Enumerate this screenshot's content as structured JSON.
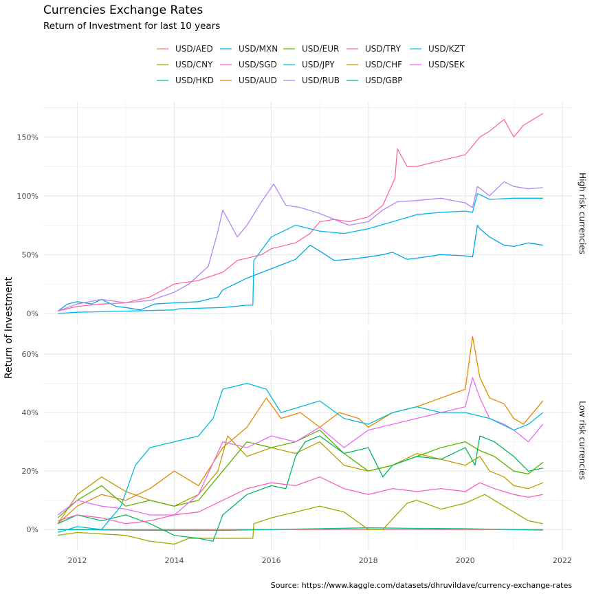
{
  "chart_data": {
    "type": "line",
    "title": "Currencies Exchange Rates",
    "subtitle": "Return of Investment for last 10 years",
    "ylabel": "Return of Investment",
    "caption": "Source: https://www.kaggle.com/datasets/dhruvildave/currency-exchange-rates",
    "xlim": [
      2011.3,
      2022.2
    ],
    "x_ticks": [
      2012,
      2014,
      2016,
      2018,
      2020,
      2022
    ],
    "x_tick_labels": [
      "2012",
      "2014",
      "2016",
      "2018",
      "2020",
      "2022"
    ],
    "grid": true,
    "legend_position": "top",
    "legend": [
      {
        "name": "USD/AED",
        "color": "#F8766D"
      },
      {
        "name": "USD/CNY",
        "color": "#A3A500"
      },
      {
        "name": "USD/HKD",
        "color": "#00BFA0"
      },
      {
        "name": "USD/MXN",
        "color": "#00A5E8"
      },
      {
        "name": "USD/SGD",
        "color": "#F560C0"
      },
      {
        "name": "USD/AUD",
        "color": "#E08A00"
      },
      {
        "name": "USD/EUR",
        "color": "#5BB300"
      },
      {
        "name": "USD/JPY",
        "color": "#00BCD8"
      },
      {
        "name": "USD/RUB",
        "color": "#B485F7"
      },
      {
        "name": "USD/TRY",
        "color": "#FF66A3"
      },
      {
        "name": "USD/CHF",
        "color": "#C09A00"
      },
      {
        "name": "USD/GBP",
        "color": "#00B85C"
      },
      {
        "name": "USD/KZT",
        "color": "#00B6EB"
      },
      {
        "name": "USD/SEK",
        "color": "#E86BF3"
      }
    ],
    "panels": [
      {
        "strip": "High risk currencies",
        "ylim": [
          -10,
          180
        ],
        "y_ticks": [
          0,
          50,
          100,
          150
        ],
        "y_tick_labels": [
          "0%",
          "50%",
          "100%",
          "150%"
        ],
        "series": [
          {
            "name": "USD/MXN",
            "color": "#00A5E8",
            "x": [
              2011.6,
              2011.8,
              2012.0,
              2012.3,
              2012.5,
              2012.8,
              2013.0,
              2013.3,
              2013.6,
              2014.0,
              2014.5,
              2014.9,
              2015.0,
              2015.5,
              2016.0,
              2016.5,
              2016.8,
              2017.0,
              2017.3,
              2017.6,
              2018.0,
              2018.3,
              2018.5,
              2018.8,
              2019.0,
              2019.5,
              2020.0,
              2020.15,
              2020.25,
              2020.3,
              2020.5,
              2020.8,
              2021.0,
              2021.3,
              2021.6
            ],
            "y": [
              2,
              8,
              10,
              8,
              12,
              6,
              5,
              3,
              8,
              9,
              10,
              14,
              20,
              30,
              38,
              46,
              58,
              53,
              45,
              46,
              48,
              50,
              52,
              46,
              47,
              50,
              49,
              48,
              75,
              72,
              65,
              58,
              57,
              60,
              58
            ]
          },
          {
            "name": "USD/KZT",
            "color": "#00B6EB",
            "x": [
              2011.6,
              2012.0,
              2013.0,
              2014.0,
              2014.1,
              2015.0,
              2015.5,
              2015.62,
              2015.64,
              2016.0,
              2016.5,
              2017.0,
              2017.5,
              2018.0,
              2018.5,
              2019.0,
              2019.5,
              2020.0,
              2020.15,
              2020.25,
              2020.5,
              2021.0,
              2021.6
            ],
            "y": [
              0,
              1,
              2,
              3,
              4,
              5,
              7,
              7,
              45,
              65,
              75,
              70,
              68,
              72,
              78,
              84,
              86,
              87,
              86,
              102,
              97,
              98,
              98
            ]
          },
          {
            "name": "USD/RUB",
            "color": "#B485F7",
            "x": [
              2011.6,
              2012.0,
              2012.5,
              2013.0,
              2013.5,
              2014.0,
              2014.3,
              2014.7,
              2014.9,
              2015.0,
              2015.3,
              2015.5,
              2015.8,
              2016.05,
              2016.3,
              2016.6,
              2017.0,
              2017.3,
              2017.6,
              2018.0,
              2018.3,
              2018.6,
              2019.0,
              2019.5,
              2020.0,
              2020.15,
              2020.25,
              2020.5,
              2020.8,
              2021.0,
              2021.3,
              2021.6
            ],
            "y": [
              2,
              8,
              12,
              9,
              11,
              18,
              25,
              40,
              70,
              88,
              65,
              75,
              95,
              110,
              92,
              90,
              85,
              80,
              75,
              78,
              88,
              95,
              96,
              98,
              94,
              90,
              108,
              100,
              112,
              108,
              106,
              107
            ]
          },
          {
            "name": "USD/TRY",
            "color": "#FF66A3",
            "x": [
              2011.6,
              2012.0,
              2012.5,
              2013.0,
              2013.5,
              2014.0,
              2014.5,
              2015.0,
              2015.3,
              2015.8,
              2016.0,
              2016.5,
              2016.8,
              2017.0,
              2017.3,
              2017.6,
              2018.0,
              2018.3,
              2018.55,
              2018.6,
              2018.8,
              2019.0,
              2019.5,
              2020.0,
              2020.3,
              2020.5,
              2020.8,
              2021.0,
              2021.2,
              2021.6
            ],
            "y": [
              2,
              6,
              8,
              9,
              14,
              25,
              28,
              35,
              45,
              50,
              55,
              60,
              68,
              78,
              80,
              78,
              82,
              92,
              115,
              140,
              125,
              125,
              130,
              135,
              150,
              155,
              165,
              150,
              160,
              170
            ]
          }
        ]
      },
      {
        "strip": "Low risk currencies",
        "ylim": [
          -7,
          68
        ],
        "y_ticks": [
          0,
          20,
          40,
          60
        ],
        "y_tick_labels": [
          "0%",
          "20%",
          "40%",
          "60%"
        ],
        "series": [
          {
            "name": "USD/AED",
            "color": "#F8766D",
            "x": [
              2011.6,
              2015.0,
              2018.0,
              2021.6
            ],
            "y": [
              0,
              0,
              0,
              0
            ]
          },
          {
            "name": "USD/HKD",
            "color": "#00BFA0",
            "x": [
              2011.6,
              2013.0,
              2015.0,
              2018.0,
              2019.0,
              2020.0,
              2021.6
            ],
            "y": [
              0,
              -0.2,
              -0.3,
              0.6,
              0.4,
              0.3,
              -0.2
            ]
          },
          {
            "name": "USD/CNY",
            "color": "#A3A500",
            "x": [
              2011.6,
              2012.0,
              2013.0,
              2013.5,
              2014.0,
              2014.3,
              2015.0,
              2015.62,
              2015.64,
              2016.0,
              2016.5,
              2017.0,
              2017.5,
              2018.0,
              2018.3,
              2018.8,
              2019.0,
              2019.5,
              2020.0,
              2020.4,
              2020.8,
              2021.0,
              2021.3,
              2021.6
            ],
            "y": [
              -2,
              -1,
              -2,
              -4,
              -5,
              -3,
              -3,
              -3,
              2,
              4,
              6,
              8,
              6,
              0,
              0,
              9,
              10,
              7,
              9,
              12,
              8,
              6,
              3,
              2
            ]
          },
          {
            "name": "USD/CHF",
            "color": "#C09A00",
            "x": [
              2011.6,
              2012.0,
              2012.5,
              2013.0,
              2013.5,
              2014.0,
              2014.5,
              2014.9,
              2015.1,
              2015.5,
              2016.0,
              2016.5,
              2017.0,
              2017.5,
              2018.0,
              2018.5,
              2019.0,
              2019.5,
              2020.0,
              2020.3,
              2020.5,
              2020.8,
              2021.0,
              2021.3,
              2021.6
            ],
            "y": [
              2,
              12,
              18,
              13,
              10,
              8,
              12,
              20,
              32,
              25,
              28,
              26,
              30,
              22,
              20,
              22,
              26,
              24,
              22,
              25,
              20,
              18,
              15,
              14,
              16
            ]
          },
          {
            "name": "USD/AUD",
            "color": "#E08A00",
            "x": [
              2011.6,
              2012.0,
              2012.5,
              2013.0,
              2013.5,
              2014.0,
              2014.5,
              2015.0,
              2015.5,
              2015.9,
              2016.2,
              2016.6,
              2017.0,
              2017.4,
              2017.8,
              2018.0,
              2018.5,
              2019.0,
              2019.5,
              2020.0,
              2020.15,
              2020.3,
              2020.5,
              2020.8,
              2021.0,
              2021.2,
              2021.6
            ],
            "y": [
              2,
              8,
              12,
              10,
              14,
              20,
              15,
              28,
              35,
              45,
              38,
              40,
              35,
              40,
              38,
              35,
              40,
              42,
              45,
              48,
              66,
              52,
              45,
              43,
              38,
              36,
              44
            ]
          },
          {
            "name": "USD/EUR",
            "color": "#5BB300",
            "x": [
              2011.6,
              2012.0,
              2012.5,
              2013.0,
              2013.5,
              2014.0,
              2014.5,
              2015.0,
              2015.5,
              2016.0,
              2016.5,
              2017.0,
              2017.5,
              2018.0,
              2018.5,
              2019.0,
              2019.5,
              2020.0,
              2020.3,
              2020.6,
              2021.0,
              2021.3,
              2021.6
            ],
            "y": [
              4,
              10,
              15,
              8,
              10,
              8,
              10,
              20,
              30,
              28,
              30,
              34,
              26,
              20,
              22,
              25,
              28,
              30,
              27,
              25,
              20,
              19,
              23
            ]
          },
          {
            "name": "USD/GBP",
            "color": "#00B85C",
            "x": [
              2011.6,
              2012.0,
              2012.5,
              2013.0,
              2013.5,
              2014.0,
              2014.5,
              2014.8,
              2015.0,
              2015.5,
              2016.0,
              2016.3,
              2016.5,
              2016.7,
              2017.0,
              2017.5,
              2018.0,
              2018.3,
              2018.5,
              2019.0,
              2019.5,
              2020.0,
              2020.2,
              2020.3,
              2020.6,
              2021.0,
              2021.3,
              2021.6
            ],
            "y": [
              2,
              5,
              3,
              5,
              2,
              -2,
              -3,
              -4,
              5,
              12,
              15,
              14,
              25,
              30,
              32,
              26,
              28,
              18,
              22,
              25,
              24,
              28,
              22,
              32,
              30,
              25,
              20,
              21
            ]
          },
          {
            "name": "USD/SEK",
            "color": "#E86BF3",
            "x": [
              2011.6,
              2012.0,
              2012.5,
              2013.0,
              2013.5,
              2014.0,
              2014.5,
              2015.0,
              2015.5,
              2016.0,
              2016.5,
              2017.0,
              2017.5,
              2018.0,
              2018.5,
              2019.0,
              2019.5,
              2020.0,
              2020.15,
              2020.3,
              2020.5,
              2020.8,
              2021.0,
              2021.3,
              2021.6
            ],
            "y": [
              5,
              10,
              8,
              7,
              5,
              5,
              12,
              30,
              28,
              32,
              30,
              35,
              28,
              34,
              36,
              38,
              40,
              42,
              52,
              45,
              38,
              36,
              34,
              30,
              36
            ]
          },
          {
            "name": "USD/SGD",
            "color": "#F560C0",
            "x": [
              2011.6,
              2012.0,
              2012.5,
              2013.0,
              2013.5,
              2014.0,
              2014.5,
              2015.0,
              2015.5,
              2016.0,
              2016.5,
              2017.0,
              2017.5,
              2018.0,
              2018.5,
              2019.0,
              2019.5,
              2020.0,
              2020.3,
              2020.6,
              2021.0,
              2021.3,
              2021.6
            ],
            "y": [
              3,
              5,
              4,
              2,
              3,
              5,
              6,
              10,
              14,
              16,
              15,
              18,
              14,
              12,
              14,
              13,
              14,
              13,
              16,
              14,
              12,
              11,
              12
            ]
          },
          {
            "name": "USD/JPY",
            "color": "#00BCD8",
            "x": [
              2011.6,
              2012.0,
              2012.5,
              2012.9,
              2013.2,
              2013.5,
              2014.0,
              2014.5,
              2014.8,
              2015.0,
              2015.5,
              2015.9,
              2016.2,
              2016.6,
              2017.0,
              2017.5,
              2018.0,
              2018.5,
              2019.0,
              2019.5,
              2020.0,
              2020.5,
              2021.0,
              2021.3,
              2021.6
            ],
            "y": [
              -1,
              1,
              0,
              8,
              22,
              28,
              30,
              32,
              38,
              48,
              50,
              48,
              40,
              42,
              44,
              38,
              36,
              40,
              42,
              40,
              40,
              38,
              34,
              36,
              40
            ]
          }
        ]
      }
    ]
  }
}
